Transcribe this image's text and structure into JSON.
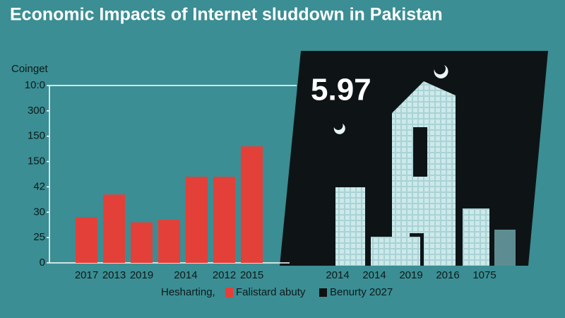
{
  "chart_data": {
    "type": "bar",
    "title": "Economic Impacts of Internet sluddown in Pakistan",
    "y_label": "Coinget",
    "categories": [
      "2017",
      "2013",
      "2019",
      null,
      "2014",
      "2012",
      "2015"
    ],
    "series": [
      {
        "name": "Falistard abuty",
        "color": "#e3403a",
        "values": [
          1.8,
          2.7,
          1.6,
          1.7,
          3.4,
          3.4,
          4.6
        ]
      }
    ],
    "ylim": [
      0,
      7
    ],
    "yticks": [
      {
        "value": 0,
        "label": "0"
      },
      {
        "value": 1,
        "label": "25"
      },
      {
        "value": 2,
        "label": "30"
      },
      {
        "value": 3,
        "label": "42"
      },
      {
        "value": 4,
        "label": "150"
      },
      {
        "value": 5,
        "label": "150"
      },
      {
        "value": 6,
        "label": "300"
      },
      {
        "value": 7,
        "label": "10:0"
      }
    ],
    "legend_prefix": "Hesharting,",
    "extra_legend": {
      "name": "Benurty 2027",
      "color": "#111111"
    },
    "inset": {
      "headline": "5.97",
      "labels": [
        "2014",
        "2014",
        "2019",
        "2016",
        "1075"
      ]
    }
  }
}
